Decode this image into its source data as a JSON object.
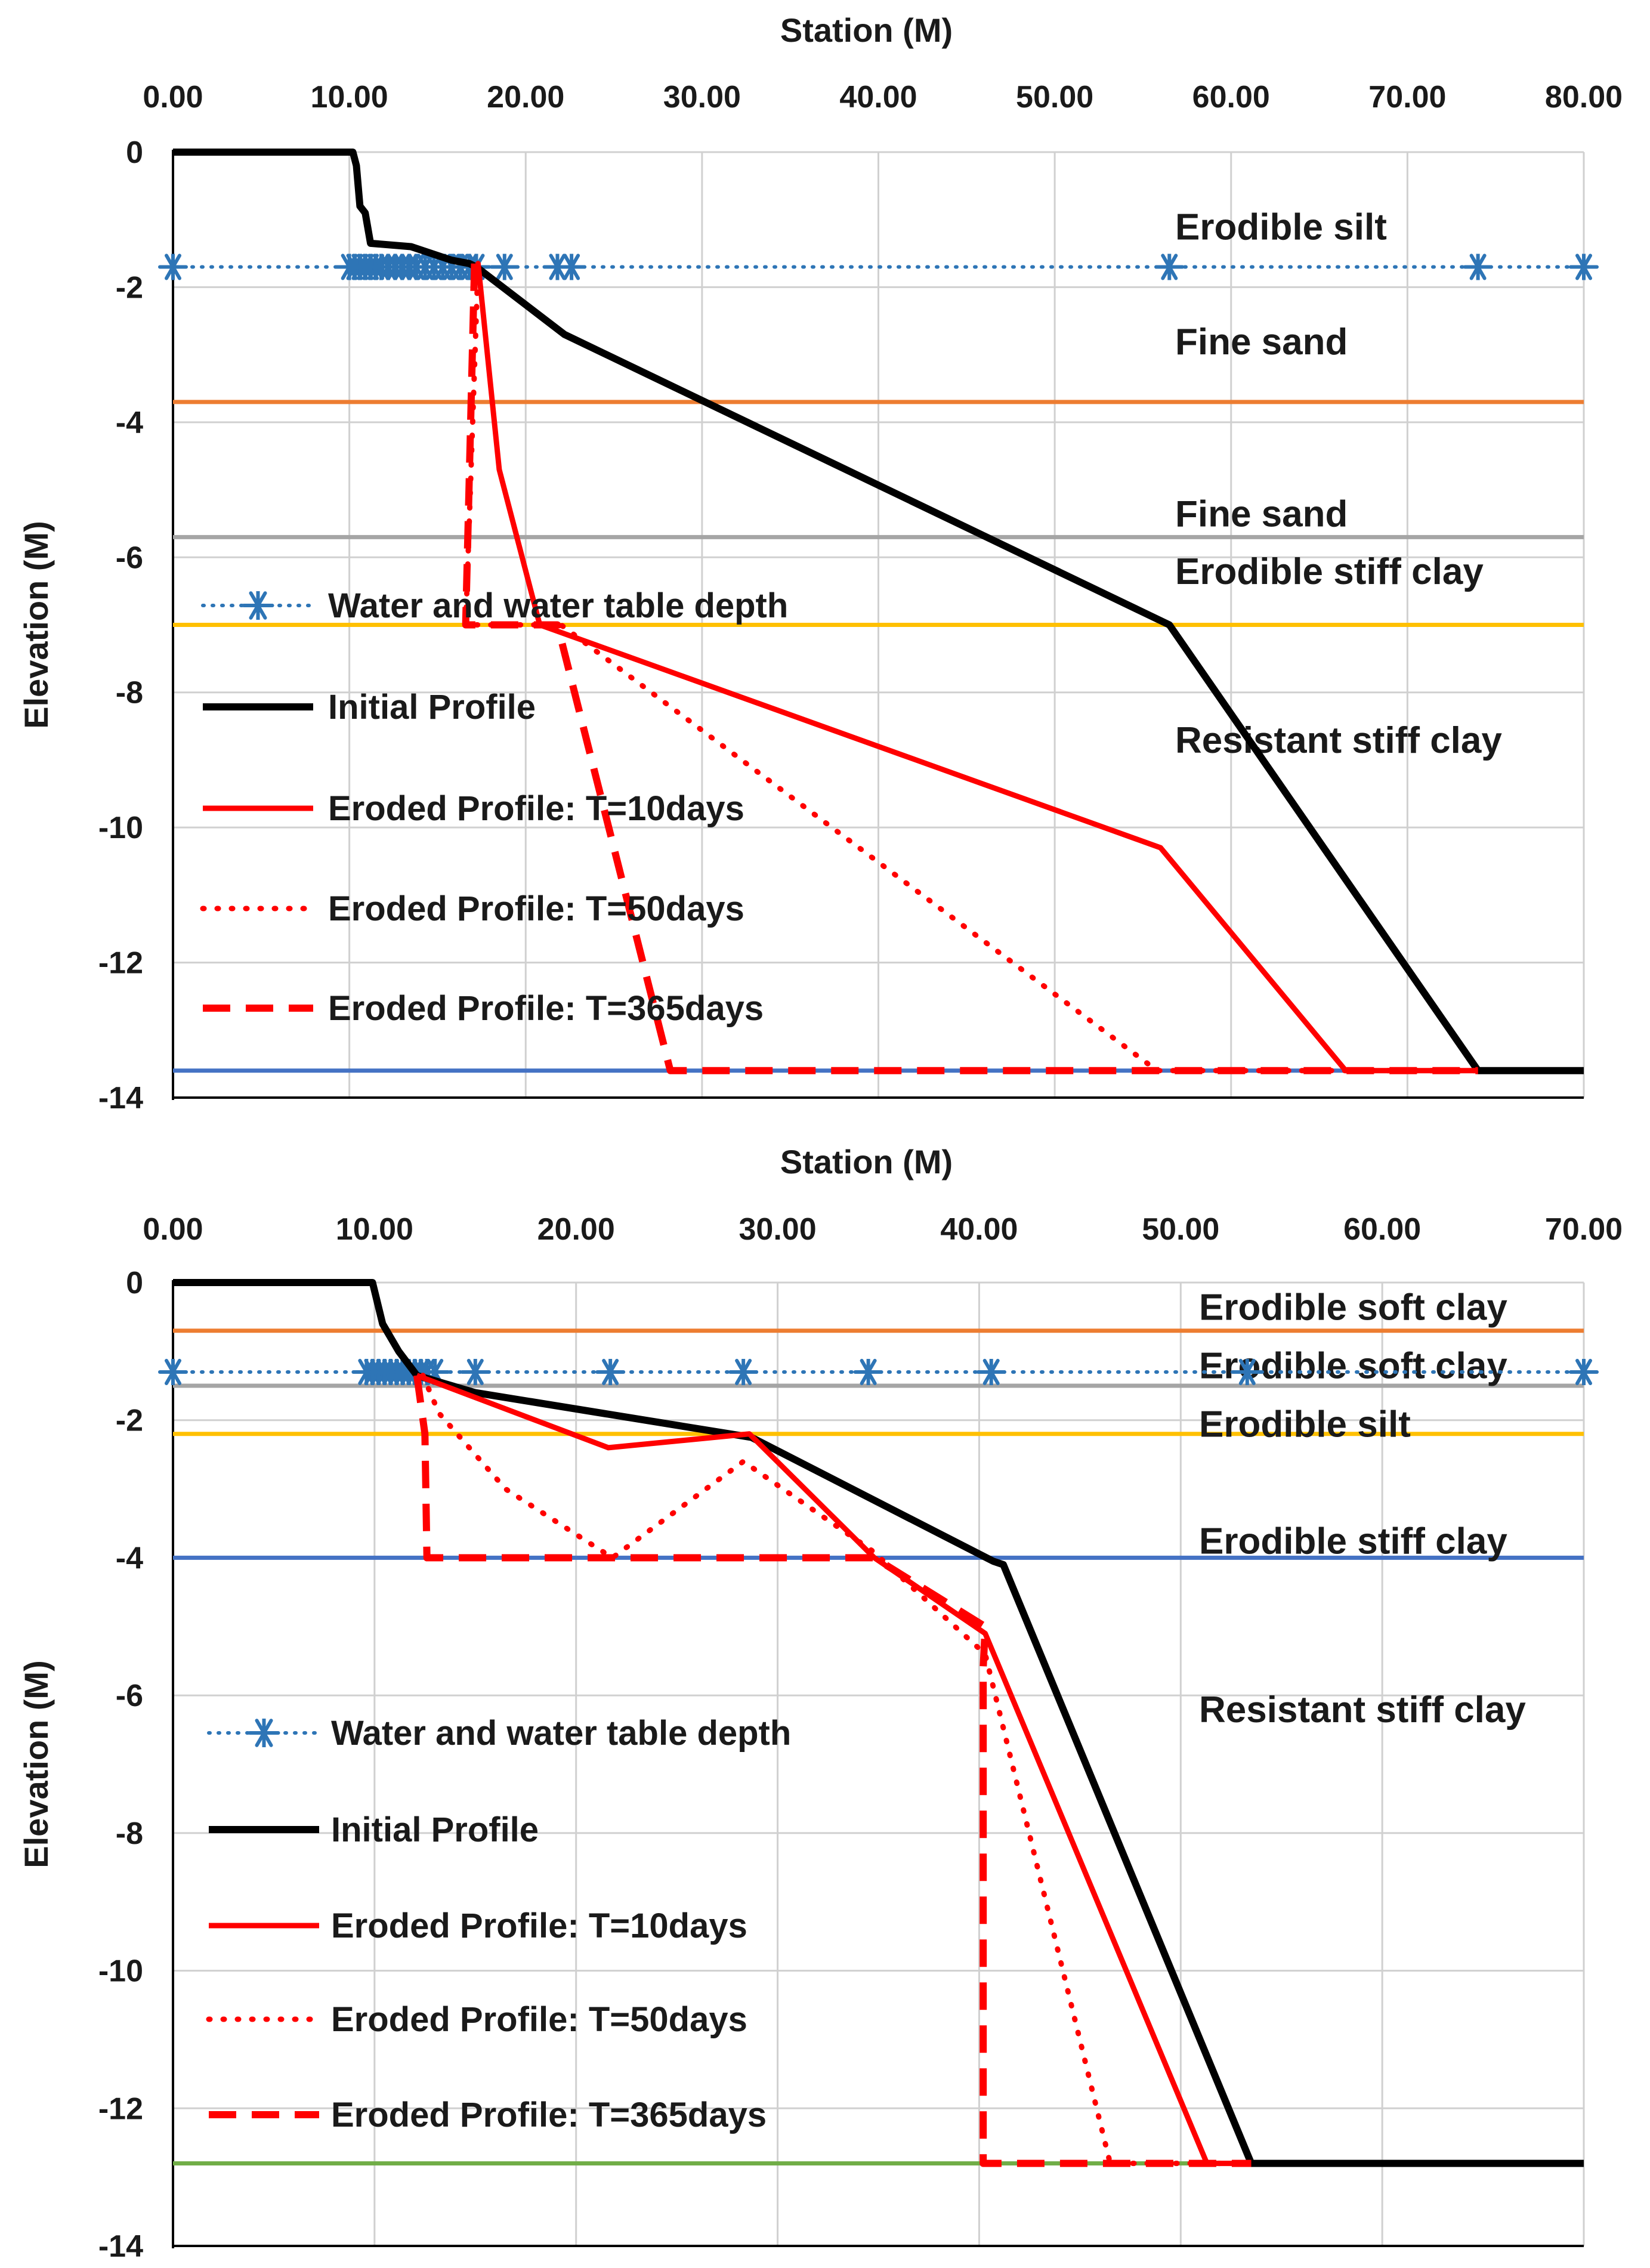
{
  "chart_data": [
    {
      "type": "line",
      "xlabel": "Station (M)",
      "ylabel": "Elevation (M)",
      "xlim": [
        0,
        80
      ],
      "ylim": [
        -14,
        0
      ],
      "x_ticks": [
        "0.00",
        "10.00",
        "20.00",
        "30.00",
        "40.00",
        "50.00",
        "60.00",
        "70.00",
        "80.00"
      ],
      "y_ticks": [
        "0",
        "-2",
        "-4",
        "-6",
        "-8",
        "-10",
        "-12",
        "-14"
      ],
      "grid": true,
      "legend": {
        "placement": "left",
        "entries": [
          "Water and water table depth",
          "Initial Profile",
          "Eroded Profile: T=10days",
          "Eroded Profile: T=50days",
          "Eroded Profile: T=365days"
        ]
      },
      "layer_labels": [
        {
          "text": "Erodible silt",
          "x": 57.5,
          "y": -1.1
        },
        {
          "text": "Fine sand",
          "x": 57.5,
          "y": -2.8
        },
        {
          "text": "Fine sand",
          "x": 57.5,
          "y": -5.35
        },
        {
          "text": "Erodible stiff clay",
          "x": 57.5,
          "y": -6.2
        },
        {
          "text": "Resistant stiff clay",
          "x": 57.5,
          "y": -8.7
        }
      ],
      "layer_boundaries": [
        {
          "y": -3.7,
          "color": "#ed7d31"
        },
        {
          "y": -5.7,
          "color": "#a5a5a5"
        },
        {
          "y": -7.0,
          "color": "#ffc000"
        },
        {
          "y": -13.6,
          "color": "#4472c4"
        }
      ],
      "series": [
        {
          "name": "Water and water table depth",
          "style": "dotted-star",
          "color": "#2e75b6",
          "x": [
            0,
            10,
            10.3,
            10.6,
            10.9,
            11.2,
            11.5,
            11.8,
            12.2,
            12.6,
            13.0,
            13.4,
            13.8,
            14.3,
            14.8,
            15.3,
            15.8,
            16.3,
            16.8,
            17.2,
            18.8,
            21.8,
            22.6,
            56.5,
            74.0,
            80
          ],
          "y": [
            -1.7,
            -1.7,
            -1.7,
            -1.7,
            -1.7,
            -1.7,
            -1.7,
            -1.7,
            -1.7,
            -1.7,
            -1.7,
            -1.7,
            -1.7,
            -1.7,
            -1.7,
            -1.7,
            -1.7,
            -1.7,
            -1.7,
            -1.7,
            -1.7,
            -1.7,
            -1.7,
            -1.7,
            -1.7,
            -1.7
          ]
        },
        {
          "name": "Initial Profile",
          "style": "solid",
          "color": "#000000",
          "x": [
            0,
            10.2,
            10.4,
            10.6,
            10.9,
            11.1,
            11.2,
            13.5,
            15.8,
            16.8,
            17.2,
            22.2,
            56.5,
            74.0,
            80
          ],
          "y": [
            0,
            0,
            -0.2,
            -0.8,
            -0.9,
            -1.2,
            -1.35,
            -1.4,
            -1.6,
            -1.65,
            -1.7,
            -2.7,
            -7.0,
            -13.6,
            -13.6
          ]
        },
        {
          "name": "Eroded Profile: T=10days",
          "style": "solid",
          "color": "#ff0000",
          "x": [
            17.3,
            18.5,
            20.8,
            56.0,
            66.5,
            74.0
          ],
          "y": [
            -1.65,
            -4.7,
            -7.0,
            -10.3,
            -13.6,
            -13.6
          ]
        },
        {
          "name": "Eroded Profile: T=50days",
          "style": "dotted",
          "color": "#ff0000",
          "x": [
            17.3,
            16.6,
            17.0,
            22.0,
            55.8,
            74.0
          ],
          "y": [
            -1.65,
            -7.0,
            -7.0,
            -7.0,
            -13.6,
            -13.6
          ]
        },
        {
          "name": "Eroded Profile: T=365days",
          "style": "dashed",
          "color": "#ff0000",
          "x": [
            17.1,
            16.6,
            16.6,
            21.8,
            28.2,
            74.0
          ],
          "y": [
            -1.65,
            -6.95,
            -7.0,
            -7.0,
            -13.6,
            -13.6
          ]
        }
      ]
    },
    {
      "type": "line",
      "xlabel": "Station (M)",
      "ylabel": "Elevation (M)",
      "xlim": [
        0,
        70
      ],
      "ylim": [
        -14,
        0
      ],
      "x_ticks": [
        "0.00",
        "10.00",
        "20.00",
        "30.00",
        "40.00",
        "50.00",
        "60.00",
        "70.00"
      ],
      "y_ticks": [
        "0",
        "-2",
        "-4",
        "-6",
        "-8",
        "-10",
        "-12",
        "-14"
      ],
      "grid": true,
      "legend": {
        "placement": "left",
        "entries": [
          "Water and water table depth",
          "Initial Profile",
          "Eroded Profile: T=10days",
          "Eroded Profile: T=50days",
          "Eroded Profile: T=365days"
        ]
      },
      "layer_labels": [
        {
          "text": "Erodible soft clay",
          "x": 51.0,
          "y": -0.35
        },
        {
          "text": "Erodible soft clay",
          "x": 51.0,
          "y": -1.2
        },
        {
          "text": "Erodible silt",
          "x": 51.0,
          "y": -2.05
        },
        {
          "text": "Erodible stiff clay",
          "x": 51.0,
          "y": -3.75
        },
        {
          "text": "Resistant stiff clay",
          "x": 51.0,
          "y": -6.2
        }
      ],
      "layer_boundaries": [
        {
          "y": -0.7,
          "color": "#ed7d31"
        },
        {
          "y": -1.5,
          "color": "#a5a5a5"
        },
        {
          "y": -2.2,
          "color": "#ffc000"
        },
        {
          "y": -4.0,
          "color": "#4472c4"
        },
        {
          "y": -12.8,
          "color": "#70ad47"
        }
      ],
      "series": [
        {
          "name": "Water and water table depth",
          "style": "dotted-star",
          "color": "#2e75b6",
          "x": [
            0,
            9.6,
            9.9,
            10.2,
            10.5,
            10.8,
            11.1,
            11.4,
            11.7,
            12.0,
            12.3,
            12.6,
            13.0,
            15.0,
            21.7,
            28.3,
            34.5,
            40.6,
            53.3,
            70.0
          ],
          "y": [
            -1.3,
            -1.3,
            -1.3,
            -1.3,
            -1.3,
            -1.3,
            -1.3,
            -1.3,
            -1.3,
            -1.3,
            -1.3,
            -1.3,
            -1.3,
            -1.3,
            -1.3,
            -1.3,
            -1.3,
            -1.3,
            -1.3,
            -1.3
          ]
        },
        {
          "name": "Initial Profile",
          "style": "solid",
          "color": "#000000",
          "x": [
            0,
            9.9,
            10.4,
            11.2,
            12.1,
            15.0,
            28.7,
            40.7,
            41.2,
            53.5,
            70.0
          ],
          "y": [
            0,
            0,
            -0.6,
            -1.0,
            -1.35,
            -1.6,
            -2.25,
            -4.05,
            -4.1,
            -12.8,
            -12.8
          ]
        },
        {
          "name": "Eroded Profile: T=10days",
          "style": "solid",
          "color": "#ff0000",
          "x": [
            12.1,
            21.6,
            28.6,
            34.8,
            40.3,
            51.3,
            53.5
          ],
          "y": [
            -1.35,
            -2.4,
            -2.2,
            -4.0,
            -5.1,
            -12.8,
            -12.8
          ]
        },
        {
          "name": "Eroded Profile: T=50days",
          "style": "dotted",
          "color": "#ff0000",
          "x": [
            12.4,
            13.2,
            16.5,
            21.8,
            28.3,
            34.7,
            40.3,
            46.5,
            53.5
          ],
          "y": [
            -1.35,
            -1.9,
            -3.0,
            -4.0,
            -2.6,
            -3.9,
            -5.4,
            -12.8,
            -12.8
          ]
        },
        {
          "name": "Eroded Profile: T=365days",
          "style": "dashed",
          "color": "#ff0000",
          "x": [
            12.1,
            12.5,
            12.6,
            34.8,
            40.3,
            40.2,
            40.2,
            53.5
          ],
          "y": [
            -1.35,
            -2.2,
            -4.0,
            -4.0,
            -5.0,
            -5.6,
            -12.8,
            -12.8
          ]
        }
      ]
    }
  ]
}
